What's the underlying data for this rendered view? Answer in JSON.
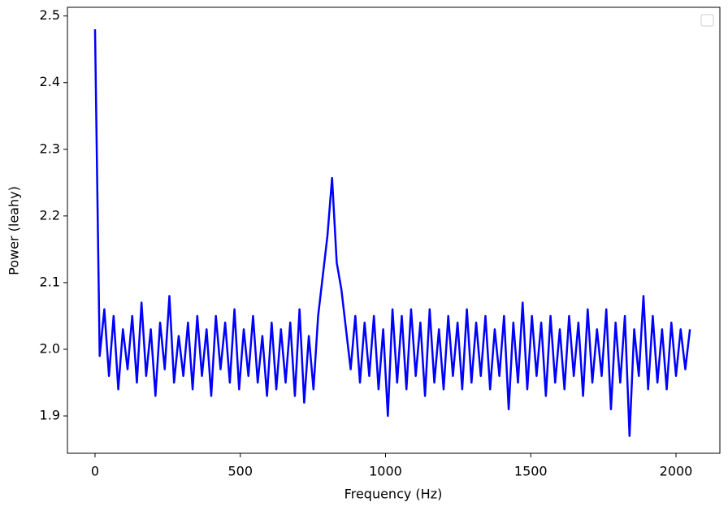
{
  "chart_data": {
    "type": "line",
    "xlabel": "Frequency (Hz)",
    "ylabel": "Power (leahy)",
    "color": "#0000ff",
    "x": [
      0,
      16,
      32,
      48,
      64,
      80,
      96,
      112,
      128,
      144,
      160,
      176,
      192,
      208,
      224,
      240,
      256,
      272,
      288,
      304,
      320,
      336,
      352,
      368,
      384,
      400,
      416,
      432,
      448,
      464,
      480,
      496,
      512,
      528,
      544,
      560,
      576,
      592,
      608,
      624,
      640,
      656,
      672,
      688,
      704,
      720,
      736,
      752,
      768,
      784,
      800,
      816,
      832,
      848,
      864,
      880,
      896,
      912,
      928,
      944,
      960,
      976,
      992,
      1008,
      1024,
      1040,
      1056,
      1072,
      1088,
      1104,
      1120,
      1136,
      1152,
      1168,
      1184,
      1200,
      1216,
      1232,
      1248,
      1264,
      1280,
      1296,
      1312,
      1328,
      1344,
      1360,
      1376,
      1392,
      1408,
      1424,
      1440,
      1456,
      1472,
      1488,
      1504,
      1520,
      1536,
      1552,
      1568,
      1584,
      1600,
      1616,
      1632,
      1648,
      1664,
      1680,
      1696,
      1712,
      1728,
      1744,
      1760,
      1776,
      1792,
      1808,
      1824,
      1840,
      1856,
      1872,
      1888,
      1904,
      1920,
      1936,
      1952,
      1968,
      1984,
      2000,
      2016,
      2032,
      2048
    ],
    "values": [
      2.48,
      1.99,
      2.06,
      1.96,
      2.05,
      1.94,
      2.03,
      1.97,
      2.05,
      1.95,
      2.07,
      1.96,
      2.03,
      1.93,
      2.04,
      1.97,
      2.08,
      1.95,
      2.02,
      1.96,
      2.04,
      1.94,
      2.05,
      1.96,
      2.03,
      1.93,
      2.05,
      1.97,
      2.04,
      1.95,
      2.06,
      1.94,
      2.03,
      1.96,
      2.05,
      1.95,
      2.02,
      1.93,
      2.04,
      1.94,
      2.03,
      1.95,
      2.04,
      1.93,
      2.06,
      1.92,
      2.02,
      1.94,
      2.05,
      2.11,
      2.17,
      2.257,
      2.13,
      2.09,
      2.03,
      1.97,
      2.05,
      1.95,
      2.04,
      1.96,
      2.05,
      1.94,
      2.03,
      1.9,
      2.06,
      1.95,
      2.05,
      1.94,
      2.06,
      1.96,
      2.04,
      1.93,
      2.06,
      1.95,
      2.03,
      1.94,
      2.05,
      1.96,
      2.04,
      1.94,
      2.06,
      1.95,
      2.04,
      1.96,
      2.05,
      1.94,
      2.03,
      1.96,
      2.05,
      1.91,
      2.04,
      1.95,
      2.07,
      1.94,
      2.05,
      1.96,
      2.04,
      1.93,
      2.05,
      1.95,
      2.03,
      1.94,
      2.05,
      1.96,
      2.04,
      1.93,
      2.06,
      1.95,
      2.03,
      1.96,
      2.06,
      1.91,
      2.04,
      1.95,
      2.05,
      1.87,
      2.03,
      1.96,
      2.08,
      1.94,
      2.05,
      1.95,
      2.03,
      1.94,
      2.04,
      1.96,
      2.03,
      1.97,
      2.03
    ],
    "xlim": [
      -95,
      2151
    ],
    "ylim": [
      1.844,
      2.513
    ],
    "xticks": [
      0,
      500,
      1000,
      1500,
      2000
    ],
    "yticks": [
      1.9,
      {
        "value": 2,
        "label": "2.0"
      },
      2.1,
      2.2,
      2.3,
      2.4,
      2.5
    ]
  }
}
